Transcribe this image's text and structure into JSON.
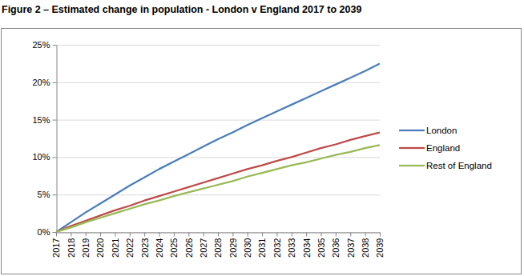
{
  "chart_data": {
    "type": "line",
    "title": "Figure 2 – Estimated change in population - London v England 2017 to 2039",
    "categories": [
      "2017",
      "2018",
      "2019",
      "2020",
      "2021",
      "2022",
      "2023",
      "2024",
      "2025",
      "2026",
      "2027",
      "2028",
      "2029",
      "2030",
      "2031",
      "2032",
      "2033",
      "2034",
      "2035",
      "2036",
      "2037",
      "2038",
      "2039"
    ],
    "series": [
      {
        "name": "London",
        "color": "#4a7ebb",
        "values": [
          0,
          1.3,
          2.6,
          3.8,
          5.0,
          6.2,
          7.3,
          8.4,
          9.4,
          10.4,
          11.4,
          12.4,
          13.3,
          14.3,
          15.2,
          16.1,
          17.0,
          17.9,
          18.8,
          19.7,
          20.6,
          21.5,
          22.5
        ]
      },
      {
        "name": "England",
        "color": "#be4b48",
        "values": [
          0,
          0.8,
          1.5,
          2.2,
          2.9,
          3.5,
          4.2,
          4.8,
          5.4,
          6.0,
          6.6,
          7.2,
          7.8,
          8.4,
          8.9,
          9.5,
          10.0,
          10.6,
          11.2,
          11.7,
          12.3,
          12.8,
          13.3
        ]
      },
      {
        "name": "Rest of England",
        "color": "#98b954",
        "values": [
          0,
          0.6,
          1.3,
          1.9,
          2.5,
          3.1,
          3.7,
          4.2,
          4.8,
          5.3,
          5.8,
          6.3,
          6.8,
          7.4,
          7.9,
          8.4,
          8.9,
          9.3,
          9.8,
          10.3,
          10.7,
          11.2,
          11.6
        ]
      }
    ],
    "ylim": [
      0,
      25
    ],
    "yticks": [
      {
        "value": 0,
        "label": "0%"
      },
      {
        "value": 5,
        "label": "5%"
      },
      {
        "value": 10,
        "label": "10%"
      },
      {
        "value": 15,
        "label": "15%"
      },
      {
        "value": 20,
        "label": "20%"
      },
      {
        "value": 25,
        "label": "25%"
      }
    ],
    "grid": true,
    "legend": "right"
  }
}
